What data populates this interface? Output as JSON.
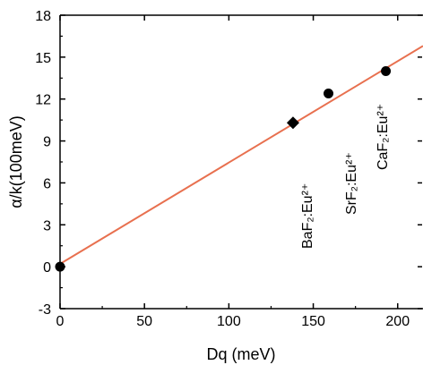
{
  "chart_data": {
    "type": "scatter",
    "xlabel": "Dq (meV)",
    "ylabel": "α/k(100meV)",
    "xlim": [
      0,
      215
    ],
    "ylim": [
      -3,
      18
    ],
    "xticks": [
      0,
      50,
      100,
      150,
      200
    ],
    "yticks": [
      -3,
      0,
      3,
      6,
      9,
      12,
      15,
      18
    ],
    "xtick_labels": [
      "0",
      "50",
      "100",
      "150",
      "200"
    ],
    "ytick_labels": [
      "-3",
      "0",
      "3",
      "6",
      "9",
      "12",
      "15",
      "18"
    ],
    "grid": false,
    "points": [
      {
        "x": 0,
        "y": 0,
        "marker": "circle"
      },
      {
        "x": 138,
        "y": 10.3,
        "marker": "diamond",
        "label": "BaF₂:Eu²⁺"
      },
      {
        "x": 159,
        "y": 12.4,
        "marker": "circle",
        "label": "SrF₂:Eu²⁺"
      },
      {
        "x": 193,
        "y": 14.0,
        "marker": "circle",
        "label": "CaF₂:Eu²⁺"
      }
    ],
    "fit_line": {
      "x": [
        0,
        215
      ],
      "y": [
        0.2,
        15.8
      ],
      "color": "#e8704f"
    }
  }
}
